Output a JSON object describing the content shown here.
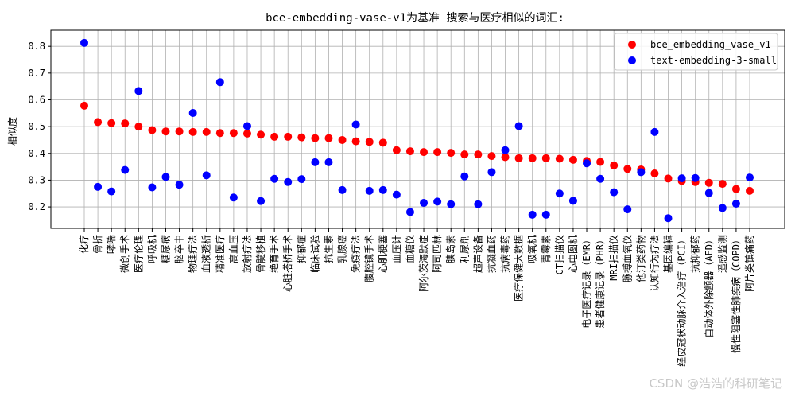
{
  "watermark": "CSDN @浩浩的科研笔记",
  "chart_data": {
    "type": "scatter",
    "title": "bce-embedding-vase-v1为基准 搜索与医疗相似的词汇:",
    "xlabel": "",
    "ylabel": "相似度",
    "ylim": [
      0.12,
      0.86
    ],
    "yticks": [
      0.2,
      0.3,
      0.4,
      0.5,
      0.6,
      0.7,
      0.8
    ],
    "grid": true,
    "legend_position": "top-right",
    "categories": [
      "化疗",
      "骨折",
      "哮喘",
      "微创手术",
      "医疗伦理",
      "呼吸机",
      "糖尿病",
      "脑卒中",
      "物理疗法",
      "血液透析",
      "精准医疗",
      "高血压",
      "放射疗法",
      "骨髓移植",
      "绝育手术",
      "心脏搭桥手术",
      "抑郁症",
      "临床试验",
      "抗生素",
      "乳腺癌",
      "免疫疗法",
      "腹腔镜手术",
      "心肌梗塞",
      "血压计",
      "血糖仪",
      "阿尔茨海默症",
      "阿司匹林",
      "胰岛素",
      "利尿剂",
      "超声设备",
      "抗凝血药",
      "抗病毒药",
      "医疗保健大数据",
      "吸氧机",
      "青霉素",
      "CT扫描仪",
      "心电图机",
      "电子医疗记录（EMR）",
      "患者健康记录（PHR）",
      "MRI扫描仪",
      "脉搏血氧仪",
      "他汀类药物",
      "认知行为疗法",
      "基因编辑",
      "经皮冠状动脉介入治疗（PCI）",
      "抗抑郁药",
      "自动体外除颤器（AED）",
      "遥感监测",
      "慢性阻塞性肺疾病（COPD）",
      "阿片类镇痛药"
    ],
    "series": [
      {
        "name": "bce_embedding_vase_v1",
        "color": "#ff0000",
        "values": [
          0.578,
          0.517,
          0.513,
          0.512,
          0.5,
          0.487,
          0.482,
          0.482,
          0.48,
          0.48,
          0.476,
          0.476,
          0.474,
          0.47,
          0.462,
          0.462,
          0.46,
          0.457,
          0.457,
          0.45,
          0.445,
          0.443,
          0.44,
          0.412,
          0.408,
          0.405,
          0.405,
          0.402,
          0.396,
          0.396,
          0.39,
          0.386,
          0.382,
          0.382,
          0.382,
          0.38,
          0.376,
          0.372,
          0.368,
          0.355,
          0.342,
          0.34,
          0.325,
          0.306,
          0.297,
          0.293,
          0.29,
          0.286,
          0.267,
          0.26
        ]
      },
      {
        "name": "text-embedding-3-small",
        "color": "#0000ff",
        "values": [
          0.813,
          0.275,
          0.258,
          0.338,
          0.633,
          0.273,
          0.312,
          0.283,
          0.551,
          0.318,
          0.666,
          0.235,
          0.502,
          0.222,
          0.305,
          0.293,
          0.304,
          0.367,
          0.367,
          0.263,
          0.508,
          0.26,
          0.263,
          0.246,
          0.181,
          0.215,
          0.22,
          0.21,
          0.314,
          0.21,
          0.33,
          0.412,
          0.502,
          0.171,
          0.171,
          0.25,
          0.223,
          0.363,
          0.305,
          0.255,
          0.191,
          0.33,
          0.48,
          0.158,
          0.307,
          0.308,
          0.252,
          0.196,
          0.212,
          0.31
        ]
      }
    ]
  }
}
